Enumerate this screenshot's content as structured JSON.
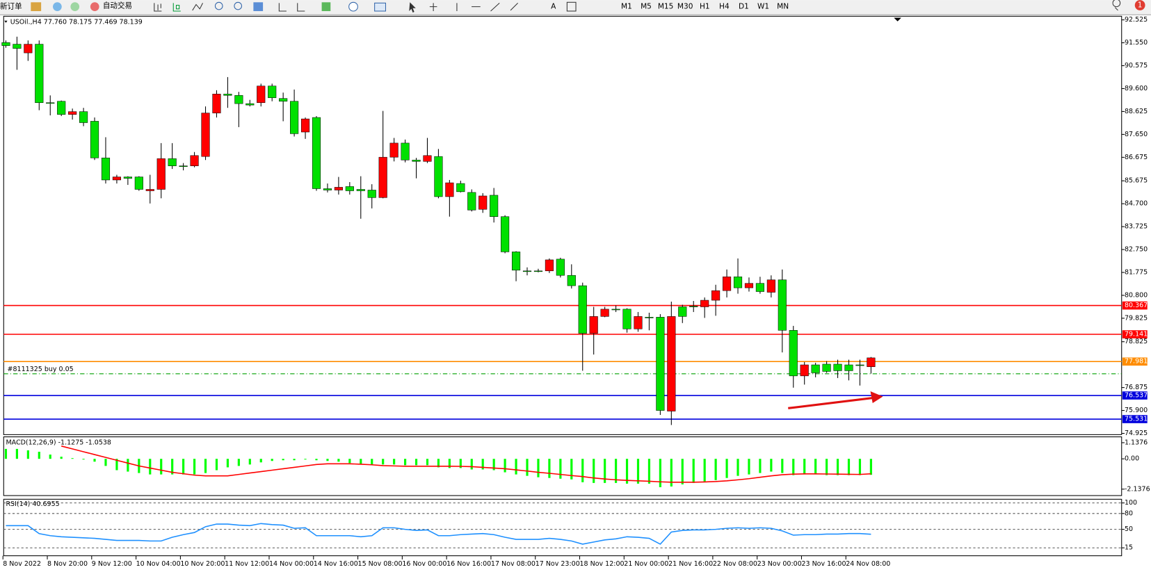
{
  "toolbar": {
    "new_order": "新订单",
    "auto_trading": "自动交易",
    "timeframes": [
      "M1",
      "M5",
      "M15",
      "M30",
      "H1",
      "H4",
      "D1",
      "W1",
      "MN"
    ],
    "notification": "1"
  },
  "chart_data": [
    {
      "type": "candlestick",
      "info": "USOil.,H4 77.760 78.175 77.469 78.139",
      "up_color": "#ff0000",
      "down_color": "#00e000",
      "categories": [
        "8 Nov 2022",
        null,
        null,
        null,
        "8 Nov 20:00",
        null,
        null,
        null,
        "9 Nov 12:00",
        null,
        null,
        null,
        "10 Nov 04:00",
        null,
        null,
        null,
        "10 Nov 20:00",
        null,
        null,
        null,
        "11 Nov 12:00",
        null,
        null,
        null,
        "14 Nov 00:00",
        null,
        null,
        null,
        "14 Nov 16:00",
        null,
        null,
        null,
        "15 Nov 08:00",
        null,
        null,
        null,
        "16 Nov 00:00",
        null,
        null,
        null,
        "16 Nov 16:00",
        null,
        null,
        null,
        "17 Nov 08:00",
        null,
        null,
        null,
        "17 Nov 23:00",
        null,
        null,
        null,
        "18 Nov 12:00",
        null,
        null,
        null,
        "21 Nov 00:00",
        null,
        null,
        null,
        "21 Nov 16:00",
        null,
        null,
        null,
        "22 Nov 08:00",
        null,
        null,
        null,
        "23 Nov 00:00",
        null,
        null,
        null,
        "23 Nov 16:00",
        null,
        null,
        null,
        "24 Nov 08:00",
        null,
        null
      ],
      "open": [
        91.56,
        91.49,
        91.12,
        91.49,
        89.0,
        89.06,
        88.5,
        88.62,
        88.21,
        86.65,
        85.71,
        85.84,
        85.84,
        85.25,
        85.31,
        86.62,
        86.31,
        86.31,
        86.71,
        88.56,
        89.37,
        89.31,
        88.96,
        89.0,
        89.71,
        89.18,
        89.06,
        87.75,
        88.37,
        85.34,
        85.28,
        85.43,
        85.31,
        85.28,
        84.96,
        86.68,
        87.28,
        86.56,
        86.5,
        86.71,
        85.0,
        85.56,
        85.18,
        84.46,
        85.06,
        84.15,
        82.65,
        81.84,
        81.84,
        81.84,
        82.34,
        81.65,
        81.21,
        79.18,
        79.9,
        80.21,
        80.21,
        79.37,
        79.87,
        79.87,
        75.87,
        80.31,
        80.34,
        80.31,
        80.59,
        81.0,
        81.59,
        81.12,
        81.31,
        80.93,
        81.46,
        79.31,
        77.37,
        77.84,
        77.87,
        77.87,
        77.84,
        77.84,
        77.76
      ],
      "high": [
        91.65,
        91.81,
        91.65,
        91.65,
        89.31,
        89.09,
        88.75,
        88.78,
        88.37,
        87.53,
        85.93,
        85.87,
        85.87,
        85.93,
        87.28,
        87.28,
        86.43,
        86.9,
        88.84,
        89.53,
        90.09,
        89.46,
        89.12,
        89.81,
        89.81,
        89.43,
        89.56,
        88.37,
        88.43,
        85.56,
        85.84,
        85.62,
        85.87,
        85.53,
        88.65,
        87.5,
        87.43,
        86.65,
        87.5,
        87.03,
        85.71,
        85.68,
        85.31,
        85.15,
        85.37,
        84.21,
        82.68,
        81.99,
        81.93,
        82.37,
        82.4,
        82.12,
        81.34,
        80.31,
        80.31,
        80.37,
        80.25,
        80.09,
        80.06,
        80.0,
        80.53,
        80.4,
        80.56,
        80.71,
        81.25,
        81.9,
        82.37,
        81.56,
        81.59,
        81.65,
        81.9,
        79.5,
        77.96,
        77.93,
        78.0,
        78.06,
        78.06,
        78.06,
        78.175
      ],
      "low": [
        91.34,
        90.4,
        90.78,
        88.68,
        88.46,
        88.43,
        88.28,
        88.0,
        86.56,
        85.56,
        85.56,
        85.5,
        85.25,
        84.71,
        84.93,
        86.18,
        86.12,
        86.25,
        86.56,
        88.37,
        88.78,
        87.96,
        88.84,
        88.84,
        89.06,
        88.21,
        87.56,
        87.46,
        85.25,
        85.18,
        85.09,
        85.09,
        84.06,
        84.5,
        84.93,
        86.5,
        86.46,
        85.78,
        86.43,
        84.93,
        84.15,
        85.18,
        84.37,
        84.31,
        83.9,
        82.59,
        81.4,
        81.65,
        81.78,
        81.75,
        81.56,
        81.09,
        77.59,
        78.28,
        79.87,
        80.09,
        79.21,
        79.25,
        79.31,
        75.71,
        75.28,
        79.62,
        80.09,
        79.84,
        79.93,
        80.71,
        80.87,
        80.96,
        80.87,
        80.71,
        78.37,
        76.87,
        77.0,
        77.31,
        77.5,
        77.28,
        77.18,
        76.96,
        77.469
      ],
      "close": [
        91.43,
        91.31,
        91.49,
        89.0,
        89.0,
        88.5,
        88.62,
        88.15,
        86.65,
        85.71,
        85.84,
        85.78,
        85.31,
        85.31,
        86.62,
        86.31,
        86.31,
        86.75,
        88.56,
        89.37,
        89.31,
        88.96,
        88.9,
        89.71,
        89.21,
        89.06,
        87.68,
        88.31,
        85.34,
        85.28,
        85.4,
        85.25,
        85.25,
        84.96,
        86.68,
        87.28,
        86.56,
        86.5,
        86.75,
        85.0,
        85.59,
        85.21,
        84.43,
        85.03,
        84.15,
        82.65,
        81.87,
        81.84,
        81.84,
        82.31,
        81.65,
        81.21,
        79.18,
        79.9,
        80.21,
        80.21,
        79.37,
        79.9,
        79.87,
        75.9,
        79.9,
        79.9,
        80.34,
        80.59,
        81.0,
        81.59,
        81.12,
        81.31,
        80.96,
        81.46,
        79.31,
        77.37,
        77.84,
        77.5,
        77.56,
        77.59,
        77.59,
        77.84,
        78.139
      ],
      "ylim": [
        74.87,
        92.68
      ],
      "yticks": [
        92.525,
        {
          "value": 91.55,
          "label": "91.550"
        },
        90.575,
        {
          "value": 89.6,
          "label": "89.600"
        },
        88.625,
        {
          "value": 87.65,
          "label": "87.650"
        },
        86.675,
        85.675,
        {
          "value": 84.7,
          "label": "84.700"
        },
        83.725,
        {
          "value": 82.75,
          "label": "82.750"
        },
        81.775,
        {
          "value": 80.8,
          "label": "80.800"
        },
        79.825,
        78.825,
        76.875,
        {
          "value": 75.9,
          "label": "75.900"
        },
        74.925
      ],
      "levels": [
        {
          "value": 80.367,
          "color": "#ff0000"
        },
        {
          "value": 79.141,
          "color": "#ff0000"
        },
        {
          "value": 77.981,
          "color": "#ff8c00"
        },
        {
          "value": 76.537,
          "color": "#0000dd"
        },
        {
          "value": 75.531,
          "color": "#0000dd"
        }
      ],
      "trade": {
        "label": "#8111325 buy 0.05",
        "value": 77.46,
        "color": "#00a000"
      }
    },
    {
      "type": "macd",
      "title": "MACD(12,26,9) -1.1275 -1.0538",
      "ylim": [
        -2.59,
        1.55
      ],
      "yticks": [
        1.1376,
        {
          "value": 0,
          "label": "0.00"
        },
        -2.1376
      ],
      "series": [
        {
          "style": "histogram",
          "color": "#00ff00",
          "values": [
            0.7,
            0.7,
            0.6,
            0.5,
            0.3,
            0.15,
            0.05,
            -0.05,
            -0.2,
            -0.5,
            -0.8,
            -0.9,
            -1.0,
            -1.1,
            -1.1,
            -1.1,
            -1.1,
            -1.1,
            -1.0,
            -0.8,
            -0.6,
            -0.5,
            -0.4,
            -0.25,
            -0.15,
            -0.1,
            -0.1,
            -0.05,
            -0.1,
            -0.15,
            -0.2,
            -0.3,
            -0.35,
            -0.4,
            -0.4,
            -0.4,
            -0.45,
            -0.45,
            -0.45,
            -0.6,
            -0.65,
            -0.65,
            -0.75,
            -0.75,
            -0.8,
            -0.95,
            -1.1,
            -1.2,
            -1.3,
            -1.35,
            -1.4,
            -1.45,
            -1.65,
            -1.7,
            -1.7,
            -1.7,
            -1.75,
            -1.75,
            -1.75,
            -2.0,
            -1.95,
            -1.8,
            -1.7,
            -1.6,
            -1.5,
            -1.35,
            -1.2,
            -1.1,
            -1.0,
            -0.9,
            -1.0,
            -1.15,
            -1.1,
            -1.1,
            -1.15,
            -1.15,
            -1.15,
            -1.15,
            -1.1275
          ]
        },
        {
          "style": "line",
          "color": "#ff0000",
          "values": [
            null,
            null,
            null,
            null,
            null,
            0.9,
            0.7,
            0.5,
            0.3,
            0.1,
            -0.1,
            -0.3,
            -0.5,
            -0.65,
            -0.8,
            -0.95,
            -1.05,
            -1.15,
            -1.2,
            -1.2,
            -1.2,
            -1.1,
            -1.0,
            -0.9,
            -0.8,
            -0.7,
            -0.6,
            -0.5,
            -0.4,
            -0.35,
            -0.35,
            -0.35,
            -0.38,
            -0.42,
            -0.48,
            -0.5,
            -0.52,
            -0.52,
            -0.52,
            -0.52,
            -0.52,
            -0.53,
            -0.55,
            -0.6,
            -0.65,
            -0.7,
            -0.78,
            -0.86,
            -0.95,
            -1.02,
            -1.1,
            -1.18,
            -1.25,
            -1.35,
            -1.42,
            -1.48,
            -1.52,
            -1.55,
            -1.58,
            -1.62,
            -1.65,
            -1.65,
            -1.65,
            -1.63,
            -1.6,
            -1.55,
            -1.48,
            -1.4,
            -1.3,
            -1.2,
            -1.12,
            -1.08,
            -1.06,
            -1.06,
            -1.07,
            -1.08,
            -1.09,
            -1.1,
            -1.0538
          ]
        }
      ]
    },
    {
      "type": "line",
      "title": "RSI(14) 40.6955",
      "ylim": [
        0,
        107
      ],
      "yticks": [
        100,
        80,
        50,
        15
      ],
      "grid": "dashed",
      "series": [
        {
          "color": "#1e90ff",
          "values": [
            57,
            57,
            57,
            42,
            38,
            36,
            35,
            34,
            33,
            31,
            29,
            29,
            29,
            28,
            28,
            35,
            40,
            44,
            55,
            60,
            60,
            58,
            57,
            61,
            59,
            58,
            52,
            53,
            38,
            38,
            38,
            38,
            36,
            38,
            53,
            53,
            50,
            48,
            49,
            38,
            38,
            40,
            41,
            42,
            40,
            35,
            31,
            31,
            31,
            33,
            31,
            28,
            22,
            26,
            30,
            32,
            36,
            35,
            33,
            22,
            45,
            48,
            49,
            49,
            50,
            52,
            53,
            52,
            53,
            52,
            47,
            39,
            40,
            40,
            41,
            41,
            42,
            42,
            40.6955
          ]
        }
      ]
    }
  ]
}
